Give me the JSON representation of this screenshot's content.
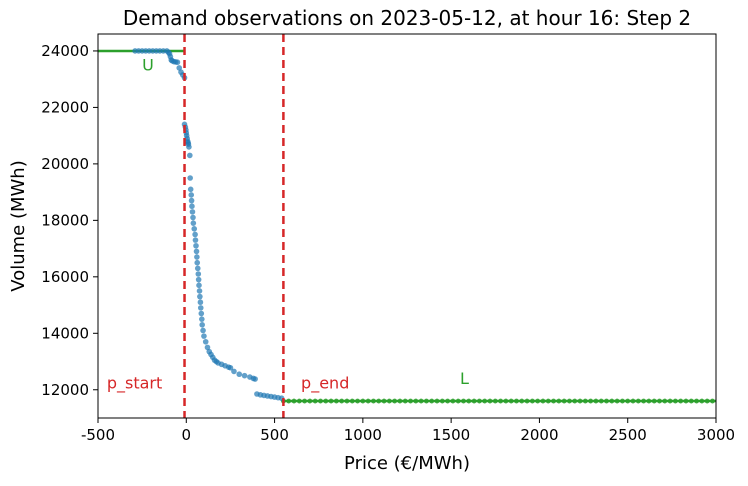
{
  "chart_data": {
    "type": "scatter",
    "title": "Demand observations on 2023-05-12, at hour 16: Step 2",
    "xlabel": "Price (€/MWh)",
    "ylabel": "Volume (MWh)",
    "xlim": [
      -500,
      3000
    ],
    "ylim": [
      11000,
      24600
    ],
    "xticks": [
      -500,
      0,
      500,
      1000,
      1500,
      2000,
      2500,
      3000
    ],
    "yticks": [
      12000,
      14000,
      16000,
      18000,
      20000,
      22000,
      24000
    ],
    "grid": false,
    "legend": "none",
    "colors": {
      "points": "#1f77b4",
      "boundary": "#2ca02c",
      "vline": "#d62728"
    },
    "series": [
      {
        "role": "observations",
        "points": [
          [
            -290,
            24000
          ],
          [
            -270,
            24000
          ],
          [
            -250,
            24000
          ],
          [
            -230,
            24000
          ],
          [
            -210,
            24000
          ],
          [
            -190,
            24000
          ],
          [
            -170,
            24000
          ],
          [
            -150,
            24000
          ],
          [
            -130,
            24000
          ],
          [
            -110,
            24000
          ],
          [
            -100,
            23950
          ],
          [
            -95,
            23900
          ],
          [
            -90,
            23800
          ],
          [
            -85,
            23680
          ],
          [
            -80,
            23650
          ],
          [
            -70,
            23620
          ],
          [
            -60,
            23610
          ],
          [
            -50,
            23600
          ],
          [
            -40,
            23400
          ],
          [
            -30,
            23250
          ],
          [
            -20,
            23150
          ],
          [
            -10,
            23050
          ],
          [
            -10,
            21400
          ],
          [
            -5,
            21300
          ],
          [
            -2,
            21200
          ],
          [
            0,
            21100
          ],
          [
            2,
            21000
          ],
          [
            5,
            20900
          ],
          [
            8,
            20800
          ],
          [
            10,
            20750
          ],
          [
            12,
            20700
          ],
          [
            15,
            20600
          ],
          [
            20,
            20300
          ],
          [
            22,
            19500
          ],
          [
            25,
            19100
          ],
          [
            28,
            18900
          ],
          [
            30,
            18700
          ],
          [
            32,
            18500
          ],
          [
            35,
            18300
          ],
          [
            38,
            18100
          ],
          [
            40,
            17900
          ],
          [
            45,
            17700
          ],
          [
            50,
            17500
          ],
          [
            52,
            17300
          ],
          [
            55,
            17100
          ],
          [
            58,
            16900
          ],
          [
            60,
            16700
          ],
          [
            62,
            16500
          ],
          [
            65,
            16300
          ],
          [
            68,
            16100
          ],
          [
            70,
            15900
          ],
          [
            72,
            15700
          ],
          [
            75,
            15500
          ],
          [
            77,
            15300
          ],
          [
            80,
            15100
          ],
          [
            82,
            14900
          ],
          [
            85,
            14700
          ],
          [
            88,
            14500
          ],
          [
            90,
            14300
          ],
          [
            95,
            14100
          ],
          [
            100,
            13900
          ],
          [
            110,
            13700
          ],
          [
            120,
            13500
          ],
          [
            130,
            13350
          ],
          [
            140,
            13250
          ],
          [
            150,
            13150
          ],
          [
            160,
            13050
          ],
          [
            170,
            13000
          ],
          [
            180,
            12950
          ],
          [
            200,
            12900
          ],
          [
            220,
            12850
          ],
          [
            240,
            12800
          ],
          [
            250,
            12780
          ],
          [
            270,
            12650
          ],
          [
            300,
            12550
          ],
          [
            330,
            12500
          ],
          [
            360,
            12450
          ],
          [
            380,
            12400
          ],
          [
            390,
            12380
          ],
          [
            400,
            11850
          ],
          [
            420,
            11820
          ],
          [
            440,
            11800
          ],
          [
            460,
            11780
          ],
          [
            480,
            11760
          ],
          [
            500,
            11740
          ],
          [
            520,
            11720
          ],
          [
            540,
            11700
          ]
        ]
      },
      {
        "role": "upper-boundary",
        "label": "U",
        "line_x": [
          -500,
          -10
        ],
        "y": 24000
      },
      {
        "role": "lower-boundary",
        "label": "L",
        "line_x": [
          550,
          3000
        ],
        "y": 11600,
        "dot_step": 30
      }
    ],
    "vlines": [
      {
        "label": "p_start",
        "x": -10
      },
      {
        "label": "p_end",
        "x": 550
      }
    ],
    "annotations": [
      {
        "text": "U",
        "x": -250,
        "y": 23300,
        "color": "#2ca02c"
      },
      {
        "text": "p_start",
        "x": -450,
        "y": 12050,
        "color": "#d62728"
      },
      {
        "text": "p_end",
        "x": 650,
        "y": 12050,
        "color": "#d62728"
      },
      {
        "text": "L",
        "x": 1550,
        "y": 12200,
        "color": "#2ca02c"
      }
    ]
  }
}
